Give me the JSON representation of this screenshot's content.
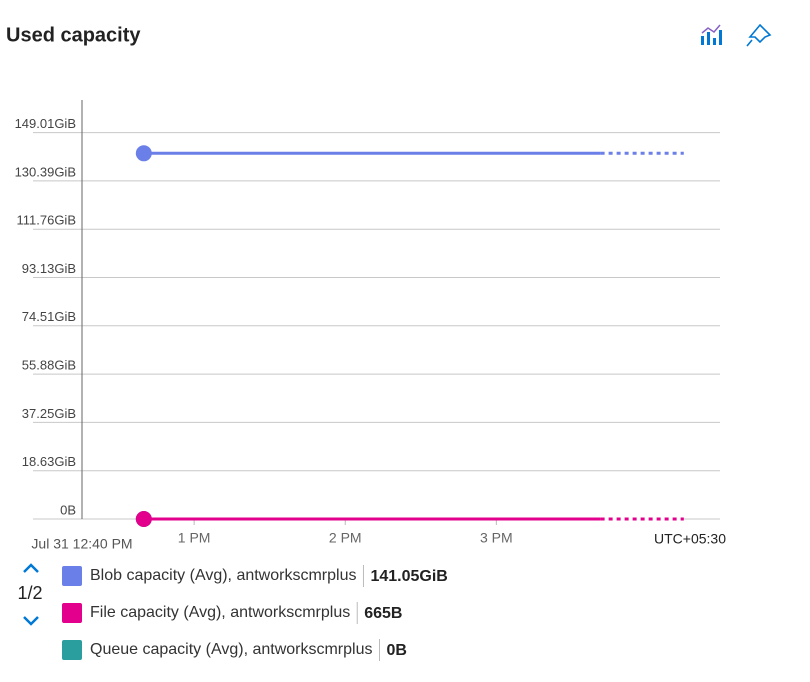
{
  "chart_data": {
    "type": "line",
    "title": "Used capacity",
    "start_label": "Jul 31 12:40 PM",
    "timezone_label": "UTC+05:30",
    "legend_page": "1/2",
    "xlim": [
      12.258,
      16.48
    ],
    "xticks": [
      {
        "value": 13,
        "label": "1 PM"
      },
      {
        "value": 14,
        "label": "2 PM"
      },
      {
        "value": 15,
        "label": "3 PM"
      }
    ],
    "ylim": [
      0,
      161.6
    ],
    "yticks": [
      {
        "value": 0,
        "label": "0B"
      },
      {
        "value": 18.63,
        "label": "18.63GiB"
      },
      {
        "value": 37.25,
        "label": "37.25GiB"
      },
      {
        "value": 55.88,
        "label": "55.88GiB"
      },
      {
        "value": 74.51,
        "label": "74.51GiB"
      },
      {
        "value": 93.13,
        "label": "93.13GiB"
      },
      {
        "value": 111.76,
        "label": "111.76GiB"
      },
      {
        "value": 130.39,
        "label": "130.39GiB"
      },
      {
        "value": 149.01,
        "label": "149.01GiB"
      }
    ],
    "grid": true,
    "dashed_last_segment": true,
    "series": [
      {
        "name": "Blob capacity (Avg), antworkscmrplus",
        "color": "#6b7fe8",
        "x": [
          12.667,
          15.69,
          16.24
        ],
        "values": [
          141.05,
          141.05,
          141.05
        ],
        "value_labels": [
          "141.05GiB"
        ]
      },
      {
        "name": "File capacity (Avg), antworkscmrplus",
        "color": "#e3008c",
        "x": [
          12.667,
          15.69,
          16.24
        ],
        "values": [
          6.193e-07,
          6.193e-07,
          6.193e-07
        ],
        "value_labels": [
          "665B"
        ]
      },
      {
        "name": "Queue capacity (Avg), antworkscmrplus",
        "color": "#2a9d9f",
        "x": [
          12.667,
          15.69,
          16.24
        ],
        "values": [
          0,
          0,
          0
        ],
        "value_labels": [
          "0B"
        ]
      }
    ]
  }
}
